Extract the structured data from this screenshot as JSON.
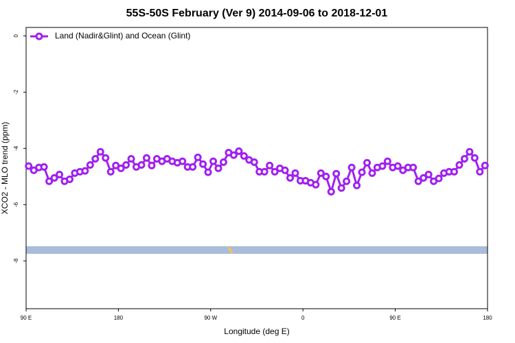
{
  "chart_data": {
    "type": "line",
    "title": "55S-50S February (Ver 9)   2014-09-06 to 2018-12-01",
    "x_label": "Longitude (deg E)",
    "y_label": "XCO2 - MLO trend (ppm)",
    "xlim": [
      90,
      540
    ],
    "ylim": [
      -9.7,
      0.3
    ],
    "xticks": [
      {
        "value": 90,
        "label": "90 E"
      },
      {
        "value": 180,
        "label": "180"
      },
      {
        "value": 270,
        "label": "90 W"
      },
      {
        "value": 360,
        "label": "0"
      },
      {
        "value": 450,
        "label": "90 E"
      },
      {
        "value": 540,
        "label": "180"
      }
    ],
    "yticks": [
      0,
      -2,
      -4,
      -6,
      -8
    ],
    "legend": "top-left",
    "x": [
      92.5,
      97.5,
      102.5,
      107.5,
      112.5,
      117.5,
      122.5,
      127.5,
      132.5,
      137.5,
      142.5,
      147.5,
      152.5,
      157.5,
      162.5,
      167.5,
      172.5,
      177.5,
      182.5,
      187.5,
      192.5,
      197.5,
      202.5,
      207.5,
      212.5,
      217.5,
      222.5,
      227.5,
      232.5,
      237.5,
      242.5,
      247.5,
      252.5,
      257.5,
      262.5,
      267.5,
      272.5,
      277.5,
      282.5,
      287.5,
      292.5,
      297.5,
      302.5,
      307.5,
      312.5,
      317.5,
      322.5,
      327.5,
      332.5,
      337.5,
      342.5,
      347.5,
      352.5,
      357.5,
      362.5,
      367.5,
      372.5,
      377.5,
      382.5,
      387.5,
      392.5,
      397.5,
      402.5,
      407.5,
      412.5,
      417.5,
      422.5,
      427.5,
      432.5,
      437.5,
      442.5,
      447.5,
      452.5,
      457.5,
      462.5,
      467.5,
      472.5,
      477.5,
      482.5,
      487.5,
      492.5,
      497.5,
      502.5,
      507.5,
      512.5,
      517.5,
      522.5,
      527.5,
      532.5,
      537.5
    ],
    "series": [
      {
        "name": "Land (Nadir&Glint) and Ocean (Glint)",
        "color": "#a020f0",
        "values": [
          -4.63,
          -4.78,
          -4.68,
          -4.66,
          -5.17,
          -5.05,
          -4.93,
          -5.17,
          -5.1,
          -4.88,
          -4.83,
          -4.8,
          -4.59,
          -4.37,
          -4.12,
          -4.34,
          -4.83,
          -4.61,
          -4.71,
          -4.59,
          -4.37,
          -4.66,
          -4.59,
          -4.34,
          -4.61,
          -4.37,
          -4.46,
          -4.37,
          -4.46,
          -4.51,
          -4.46,
          -4.66,
          -4.66,
          -4.32,
          -4.56,
          -4.85,
          -4.46,
          -4.71,
          -4.49,
          -4.15,
          -4.24,
          -4.1,
          -4.27,
          -4.41,
          -4.49,
          -4.83,
          -4.83,
          -4.61,
          -4.83,
          -4.71,
          -4.78,
          -5.05,
          -4.88,
          -5.15,
          -5.15,
          -5.22,
          -5.29,
          -4.88,
          -5.0,
          -5.54,
          -4.9,
          -5.41,
          -5.17,
          -4.68,
          -5.32,
          -4.85,
          -4.51,
          -4.88,
          -4.68,
          -4.63,
          -4.46,
          -4.68,
          -4.63,
          -4.78,
          -4.68,
          -4.68,
          -5.17,
          -5.05,
          -4.93,
          -5.17,
          -5.07,
          -4.88,
          -4.83,
          -4.83,
          -4.59,
          -4.37,
          -4.12,
          -4.34,
          -4.83,
          -4.61
        ]
      }
    ]
  }
}
